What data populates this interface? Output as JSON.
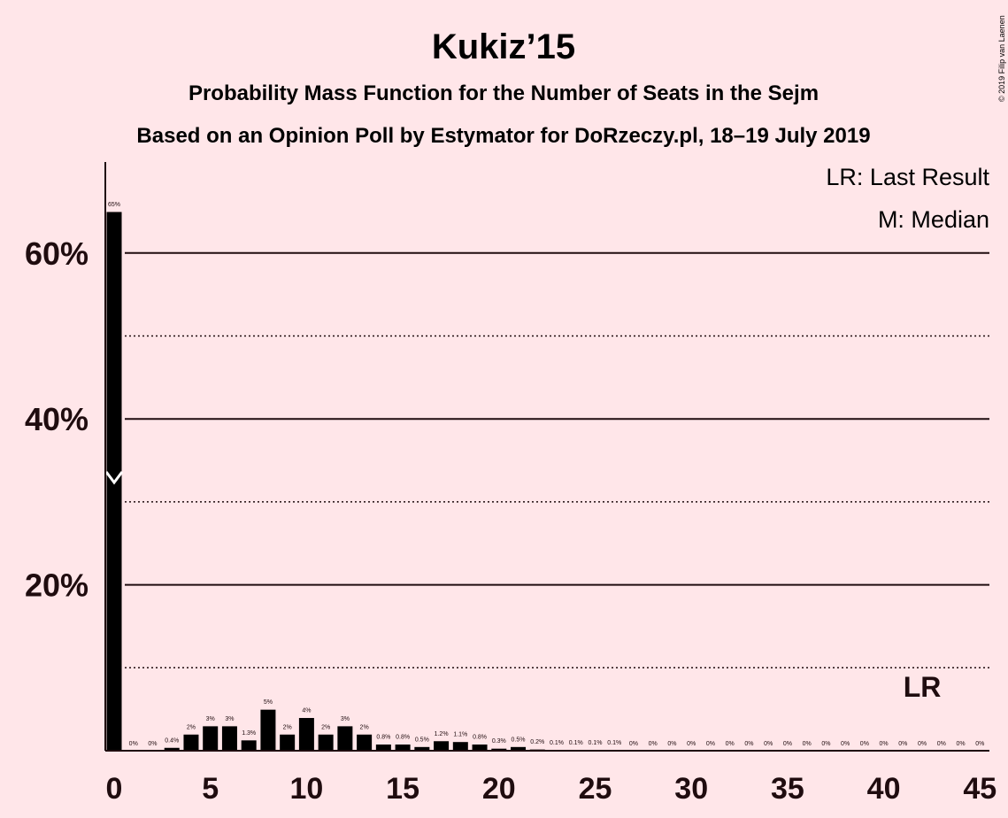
{
  "chart_data": {
    "type": "bar",
    "title": "Kukiz’15",
    "subtitle": "Probability Mass Function for the Number of Seats in the Sejm",
    "subtitle2": "Based on an Opinion Poll by Estymator for DoRzeczy.pl, 18–19 July 2019",
    "copyright": "© 2019 Filip van Laenen",
    "legend": [
      "LR: Last Result",
      "M: Median"
    ],
    "xlabel": "",
    "ylabel": "",
    "xlim": [
      0,
      45
    ],
    "ylim": [
      0,
      70
    ],
    "x_ticks": [
      0,
      5,
      10,
      15,
      20,
      25,
      30,
      35,
      40,
      45
    ],
    "y_ticks": [
      {
        "value": 20,
        "label": "20%"
      },
      {
        "value": 40,
        "label": "40%"
      },
      {
        "value": 60,
        "label": "60%"
      }
    ],
    "grid": {
      "solid": [
        20,
        40,
        60
      ],
      "dotted": [
        10,
        30,
        50
      ]
    },
    "median_seat": 0,
    "last_result_seat": 42,
    "last_result_label": "LR",
    "x": [
      0,
      1,
      2,
      3,
      4,
      5,
      6,
      7,
      8,
      9,
      10,
      11,
      12,
      13,
      14,
      15,
      16,
      17,
      18,
      19,
      20,
      21,
      22,
      23,
      24,
      25,
      26,
      27,
      28,
      29,
      30,
      31,
      32,
      33,
      34,
      35,
      36,
      37,
      38,
      39,
      40,
      41,
      42,
      43,
      44,
      45
    ],
    "values": [
      65,
      0,
      0,
      0.4,
      2,
      3,
      3,
      1.3,
      5,
      2,
      4,
      2,
      3,
      2,
      0.8,
      0.8,
      0.5,
      1.2,
      1.1,
      0.8,
      0.3,
      0.5,
      0.2,
      0.1,
      0.1,
      0.1,
      0.1,
      0,
      0,
      0,
      0,
      0,
      0,
      0,
      0,
      0,
      0,
      0,
      0,
      0,
      0,
      0,
      0,
      0,
      0,
      0
    ],
    "labels": [
      "65%",
      "0%",
      "0%",
      "0.4%",
      "2%",
      "3%",
      "3%",
      "1.3%",
      "5%",
      "2%",
      "4%",
      "2%",
      "3%",
      "2%",
      "0.8%",
      "0.8%",
      "0.5%",
      "1.2%",
      "1.1%",
      "0.8%",
      "0.3%",
      "0.5%",
      "0.2%",
      "0.1%",
      "0.1%",
      "0.1%",
      "0.1%",
      "0%",
      "0%",
      "0%",
      "0%",
      "0%",
      "0%",
      "0%",
      "0%",
      "0%",
      "0%",
      "0%",
      "0%",
      "0%",
      "0%",
      "0%",
      "0%",
      "0%",
      "0%",
      "0%"
    ]
  }
}
